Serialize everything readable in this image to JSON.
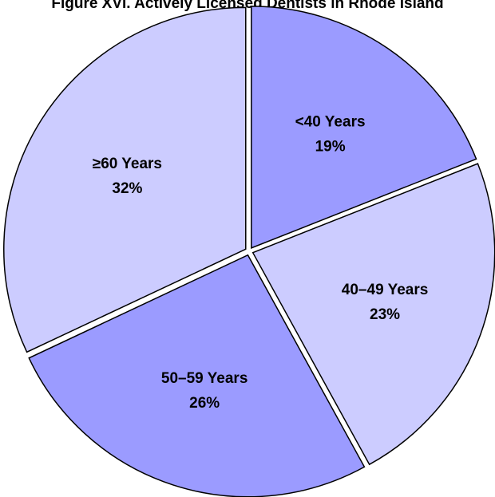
{
  "chart_data": {
    "type": "pie",
    "title": "Figure XVI. Actively Licensed Dentists in Rhode Island",
    "slices": [
      {
        "label": "<40 Years",
        "value": 19,
        "value_label": "19%",
        "color": "#9b9bff"
      },
      {
        "label": "40–49 Years",
        "value": 23,
        "value_label": "23%",
        "color": "#ccccff"
      },
      {
        "label": "50–59 Years",
        "value": 26,
        "value_label": "26%",
        "color": "#9b9bff"
      },
      {
        "label": "≥60 Years",
        "value": 32,
        "value_label": "32%",
        "color": "#ccccff"
      }
    ],
    "start": "12 o'clock",
    "direction": "clockwise",
    "legend": "none"
  }
}
